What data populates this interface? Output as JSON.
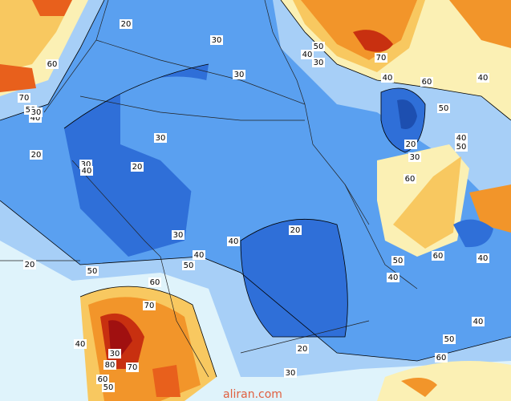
{
  "contour_labels": [
    20,
    30,
    60,
    50,
    40,
    30,
    70,
    30,
    40,
    60,
    40,
    70,
    50,
    40,
    30,
    50,
    30,
    20,
    40,
    50,
    20,
    30,
    30,
    20,
    40,
    60,
    20,
    30,
    40,
    50,
    60,
    40,
    20,
    40,
    50,
    50,
    40,
    60,
    70,
    40,
    40,
    30,
    50,
    20,
    80,
    70,
    60,
    60,
    50,
    30
  ],
  "watermark": "aliran.com"
}
